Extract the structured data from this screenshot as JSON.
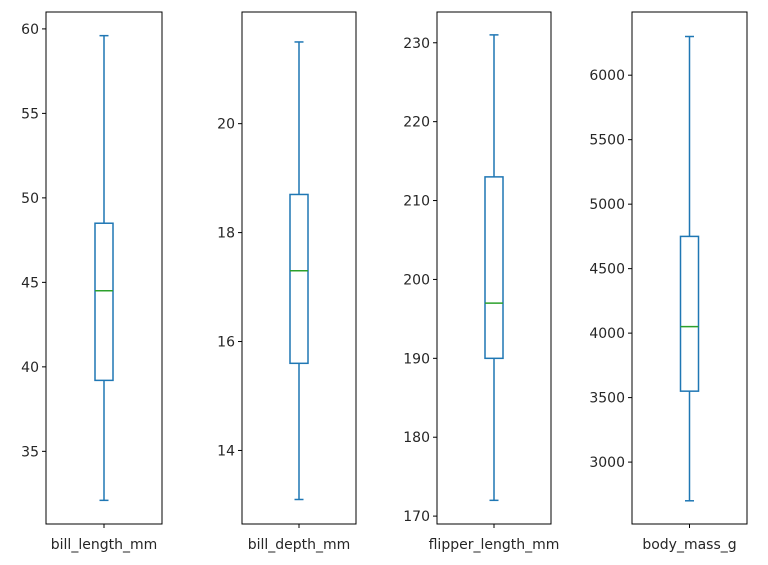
{
  "chart_data": [
    {
      "type": "box",
      "xlabel": "bill_length_mm",
      "ylim": [
        30.7,
        61.0
      ],
      "yticks": [
        35,
        40,
        45,
        50,
        55,
        60
      ],
      "ytick_labels": [
        "35",
        "40",
        "45",
        "50",
        "55",
        "60"
      ],
      "box": {
        "min": 32.1,
        "q1": 39.2,
        "median": 44.5,
        "q3": 48.5,
        "max": 59.6
      }
    },
    {
      "type": "box",
      "xlabel": "bill_depth_mm",
      "ylim": [
        12.65,
        22.05
      ],
      "yticks": [
        14,
        16,
        18,
        20
      ],
      "ytick_labels": [
        "14",
        "16",
        "18",
        "20"
      ],
      "box": {
        "min": 13.1,
        "q1": 15.6,
        "median": 17.3,
        "q3": 18.7,
        "max": 21.5
      }
    },
    {
      "type": "box",
      "xlabel": "flipper_length_mm",
      "ylim": [
        169.0,
        233.9
      ],
      "yticks": [
        170,
        180,
        190,
        200,
        210,
        220,
        230
      ],
      "ytick_labels": [
        "170",
        "180",
        "190",
        "200",
        "210",
        "220",
        "230"
      ],
      "box": {
        "min": 172,
        "q1": 190,
        "median": 197,
        "q3": 213,
        "max": 231
      }
    },
    {
      "type": "box",
      "xlabel": "body_mass_g",
      "ylim": [
        2520,
        6490
      ],
      "yticks": [
        3000,
        3500,
        4000,
        4500,
        5000,
        5500,
        6000
      ],
      "ytick_labels": [
        "3000",
        "3500",
        "4000",
        "4500",
        "5000",
        "5500",
        "6000"
      ],
      "box": {
        "min": 2700,
        "q1": 3550,
        "median": 4050,
        "q3": 4750,
        "max": 6300
      }
    }
  ],
  "colors": {
    "box": "#1f77b4",
    "median": "#2ca02c",
    "axes": "#000000"
  }
}
